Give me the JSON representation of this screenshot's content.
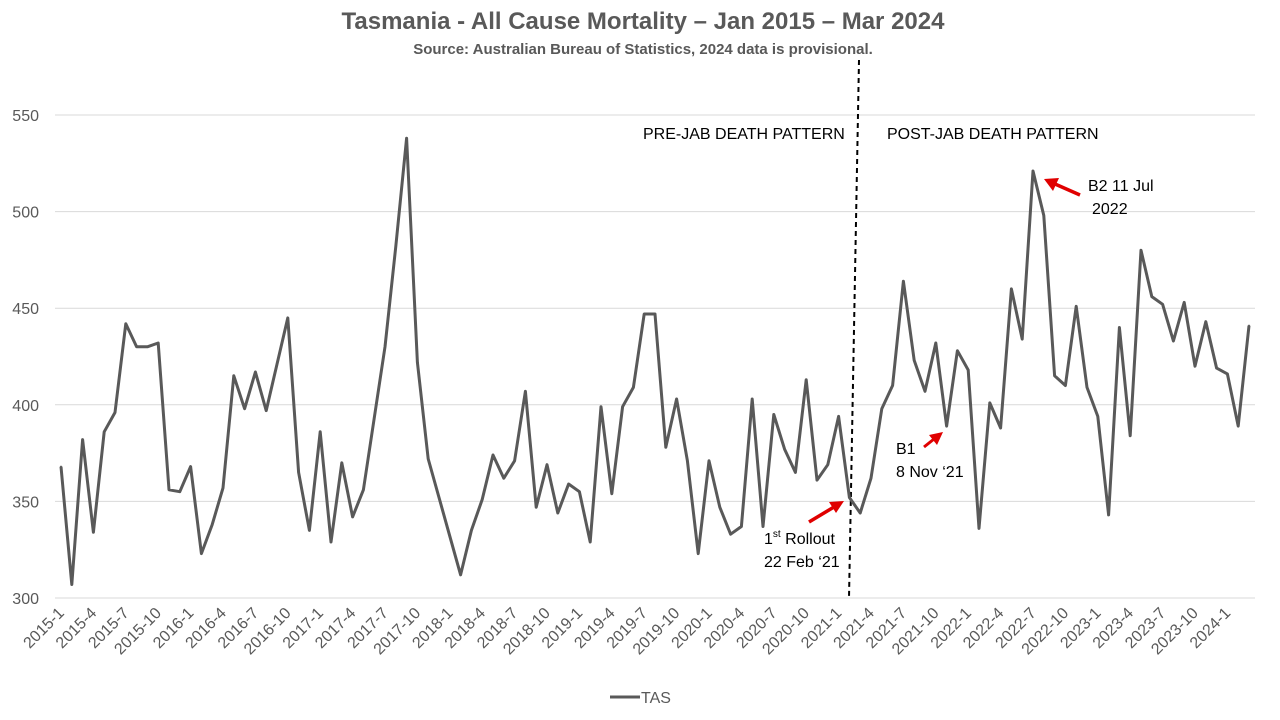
{
  "chart_data": {
    "type": "line",
    "title": "Tasmania - All Cause Mortality – Jan 2015 – Mar 2024",
    "subtitle": "Source: Australian Bureau of Statistics, 2024 data is provisional.",
    "xlabel": "",
    "ylabel": "",
    "ylim": [
      300,
      570
    ],
    "yticks": [
      300,
      350,
      400,
      450,
      500,
      550
    ],
    "grid": true,
    "legend_position": "bottom",
    "colors": {
      "line": "#595959",
      "grid": "#d9d9d9",
      "divider": "#000000",
      "arrow": "#e00000"
    },
    "x": [
      "2015-1",
      "2015-2",
      "2015-3",
      "2015-4",
      "2015-5",
      "2015-6",
      "2015-7",
      "2015-8",
      "2015-9",
      "2015-10",
      "2015-11",
      "2015-12",
      "2016-1",
      "2016-2",
      "2016-3",
      "2016-4",
      "2016-5",
      "2016-6",
      "2016-7",
      "2016-8",
      "2016-9",
      "2016-10",
      "2016-11",
      "2016-12",
      "2017-1",
      "2017-2",
      "2017-3",
      "2017-4",
      "2017-5",
      "2017-6",
      "2017-7",
      "2017-8",
      "2017-9",
      "2017-10",
      "2017-11",
      "2017-12",
      "2018-1",
      "2018-2",
      "2018-3",
      "2018-4",
      "2018-5",
      "2018-6",
      "2018-7",
      "2018-8",
      "2018-9",
      "2018-10",
      "2018-11",
      "2018-12",
      "2019-1",
      "2019-2",
      "2019-3",
      "2019-4",
      "2019-5",
      "2019-6",
      "2019-7",
      "2019-8",
      "2019-9",
      "2019-10",
      "2019-11",
      "2019-12",
      "2020-1",
      "2020-2",
      "2020-3",
      "2020-4",
      "2020-5",
      "2020-6",
      "2020-7",
      "2020-8",
      "2020-9",
      "2020-10",
      "2020-11",
      "2020-12",
      "2021-1",
      "2021-2",
      "2021-3",
      "2021-4",
      "2021-5",
      "2021-6",
      "2021-7",
      "2021-8",
      "2021-9",
      "2021-10",
      "2021-11",
      "2021-12",
      "2022-1",
      "2022-2",
      "2022-3",
      "2022-4",
      "2022-5",
      "2022-6",
      "2022-7",
      "2022-8",
      "2022-9",
      "2022-10",
      "2022-11",
      "2022-12",
      "2023-1",
      "2023-2",
      "2023-3",
      "2023-4",
      "2023-5",
      "2023-6",
      "2023-7",
      "2023-8",
      "2023-9",
      "2023-10",
      "2023-11",
      "2023-12",
      "2024-1",
      "2024-2",
      "2024-3"
    ],
    "xtick_labels": [
      "2015-1",
      "2015-4",
      "2015-7",
      "2015-10",
      "2016-1",
      "2016-4",
      "2016-7",
      "2016-10",
      "2017-1",
      "2017-4",
      "2017-7",
      "2017-10",
      "2018-1",
      "2018-4",
      "2018-7",
      "2018-10",
      "2019-1",
      "2019-4",
      "2019-7",
      "2019-10",
      "2020-1",
      "2020-4",
      "2020-7",
      "2020-10",
      "2021-1",
      "2021-4",
      "2021-7",
      "2021-10",
      "2022-1",
      "2022-4",
      "2022-7",
      "2022-10",
      "2023-1",
      "2023-4",
      "2023-7",
      "2023-10",
      "2024-1"
    ],
    "series": [
      {
        "name": "TAS",
        "values": [
          368,
          307,
          382,
          334,
          386,
          396,
          442,
          430,
          430,
          432,
          356,
          355,
          368,
          323,
          338,
          357,
          415,
          398,
          417,
          397,
          421,
          445,
          365,
          335,
          386,
          329,
          370,
          342,
          356,
          393,
          430,
          482,
          538,
          422,
          372,
          352,
          332,
          312,
          335,
          351,
          374,
          362,
          371,
          407,
          347,
          369,
          344,
          359,
          355,
          329,
          399,
          354,
          399,
          409,
          447,
          447,
          378,
          403,
          371,
          323,
          371,
          347,
          333,
          337,
          403,
          337,
          395,
          377,
          365,
          413,
          361,
          369,
          394,
          352,
          344,
          362,
          398,
          410,
          464,
          423,
          407,
          432,
          389,
          428,
          418,
          336,
          401,
          388,
          460,
          434,
          521,
          498,
          415,
          410,
          451,
          409,
          394,
          343,
          440,
          384,
          480,
          456,
          452,
          433,
          453,
          420,
          443,
          419,
          416,
          389,
          441
        ]
      }
    ],
    "annotations": {
      "pre_label": "PRE-JAB DEATH PATTERN",
      "post_label": "POST-JAB DEATH PATTERN",
      "rollout_line1_base": "1",
      "rollout_line1_sup": "st",
      "rollout_line1_rest": " Rollout",
      "rollout_line2": "22 Feb ‘21",
      "b1_line1": "B1",
      "b1_line2": "8 Nov ‘21",
      "b2_line1": "B2  11 Jul",
      "b2_line2": "2022"
    }
  }
}
